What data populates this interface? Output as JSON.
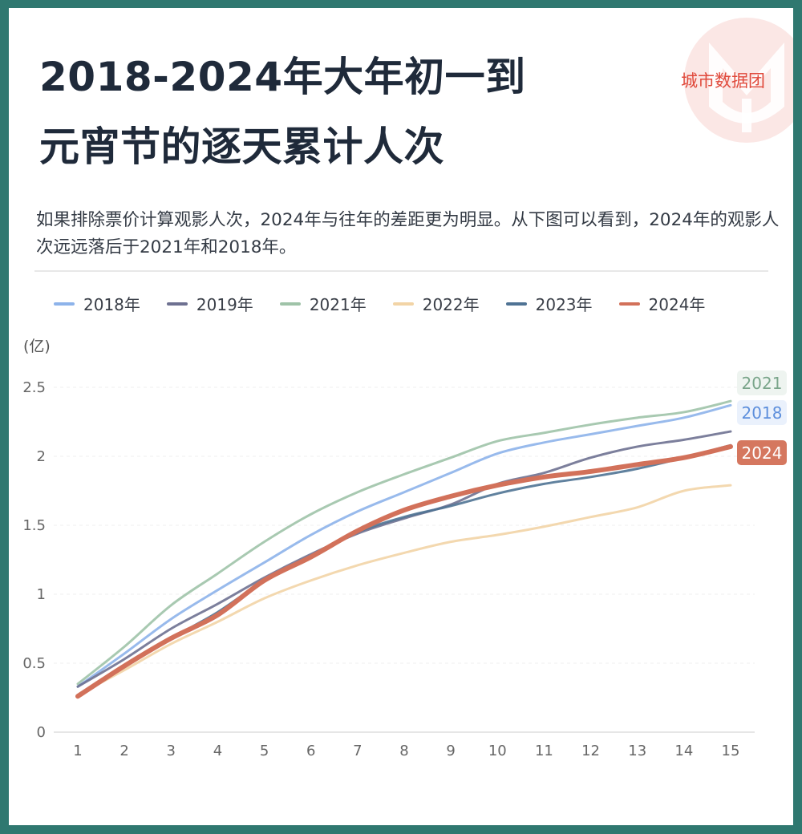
{
  "header": {
    "title_line1": "2018-2024年大年初一到",
    "title_line2": "元宵节的逐天累计人次",
    "subtitle": "如果排除票价计算观影人次，2024年与往年的差距更为明显。从下图可以看到，2024年的观影人次远远落后于2021年和2018年。",
    "brand": "城市数据团"
  },
  "legend": [
    {
      "label": "2018年",
      "color": "#8db3ea"
    },
    {
      "label": "2019年",
      "color": "#6e7191"
    },
    {
      "label": "2021年",
      "color": "#9fc3a8"
    },
    {
      "label": "2022年",
      "color": "#f2d4a6"
    },
    {
      "label": "2023年",
      "color": "#4f7394"
    },
    {
      "label": "2024年",
      "color": "#d2715a"
    }
  ],
  "axis": {
    "unit_label": "(亿)"
  },
  "end_labels": [
    {
      "text": "2021",
      "color": "#7aa58a",
      "bg": "#eef4f0"
    },
    {
      "text": "2018",
      "color": "#5d8fdc",
      "bg": "#eaf1fc"
    },
    {
      "text": "2024",
      "color": "#ffffff",
      "bg": "#d5775f"
    }
  ],
  "chart_data": {
    "type": "line",
    "title": "2018-2024年大年初一到元宵节的逐天累计人次",
    "subtitle": "如果排除票价计算观影人次，2024年与往年的差距更为明显。从下图可以看到，2024年的观影人次远远落后于2021年和2018年。",
    "xlabel": "",
    "ylabel": "(亿)",
    "x": [
      1,
      2,
      3,
      4,
      5,
      6,
      7,
      8,
      9,
      10,
      11,
      12,
      13,
      14,
      15
    ],
    "yticks": [
      "0",
      "0.5",
      "1",
      "1.5",
      "2",
      "2.5"
    ],
    "ylim": [
      0,
      2.5
    ],
    "grid": true,
    "legend_position": "top",
    "series": [
      {
        "name": "2018年",
        "color": "#8db3ea",
        "width": 3,
        "values": [
          0.33,
          0.57,
          0.82,
          1.03,
          1.23,
          1.43,
          1.6,
          1.74,
          1.88,
          2.02,
          2.1,
          2.16,
          2.22,
          2.28,
          2.37
        ]
      },
      {
        "name": "2019年",
        "color": "#6e7191",
        "width": 3,
        "values": [
          0.33,
          0.53,
          0.75,
          0.93,
          1.12,
          1.29,
          1.44,
          1.55,
          1.65,
          1.8,
          1.88,
          1.99,
          2.07,
          2.12,
          2.18
        ]
      },
      {
        "name": "2021年",
        "color": "#9fc3a8",
        "width": 3,
        "values": [
          0.35,
          0.62,
          0.92,
          1.15,
          1.38,
          1.58,
          1.74,
          1.87,
          1.99,
          2.11,
          2.17,
          2.23,
          2.28,
          2.32,
          2.4
        ]
      },
      {
        "name": "2022年",
        "color": "#f2d4a6",
        "width": 3,
        "values": [
          0.27,
          0.45,
          0.64,
          0.8,
          0.97,
          1.1,
          1.21,
          1.3,
          1.38,
          1.43,
          1.49,
          1.56,
          1.63,
          1.75,
          1.79
        ]
      },
      {
        "name": "2023年",
        "color": "#4f7394",
        "width": 3,
        "values": [
          0.26,
          0.48,
          0.68,
          0.87,
          1.1,
          1.28,
          1.45,
          1.56,
          1.64,
          1.73,
          1.8,
          1.85,
          1.91,
          1.99,
          2.08
        ]
      },
      {
        "name": "2024年",
        "color": "#d2715a",
        "width": 6,
        "values": [
          0.26,
          0.48,
          0.68,
          0.85,
          1.1,
          1.27,
          1.46,
          1.61,
          1.71,
          1.79,
          1.85,
          1.89,
          1.94,
          1.99,
          2.07
        ]
      }
    ],
    "annotations": [
      "2021",
      "2018",
      "2024"
    ]
  }
}
